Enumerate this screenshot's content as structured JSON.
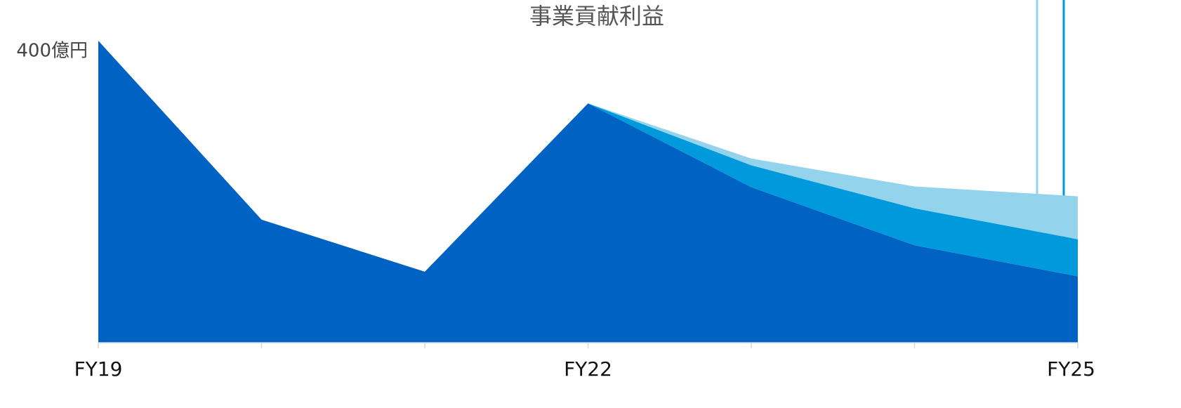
{
  "chart_data": {
    "type": "area",
    "stacked": true,
    "title": "事業貢献利益",
    "categories": [
      "FY19",
      null,
      null,
      "FY22",
      null,
      null,
      "FY25"
    ],
    "series": [
      {
        "color": "#0063c3",
        "values": [
          400,
          163,
          94,
          317,
          206,
          129,
          88
        ]
      },
      {
        "color": "#0099db",
        "values": [
          null,
          null,
          null,
          0,
          29,
          49,
          49
        ]
      },
      {
        "color": "#94d3ec",
        "values": [
          null,
          null,
          null,
          0,
          9,
          29,
          57
        ]
      }
    ],
    "ylim": [
      0,
      400
    ],
    "yticks": [
      {
        "value": 400,
        "label": "400億円"
      }
    ],
    "grid": false
  }
}
